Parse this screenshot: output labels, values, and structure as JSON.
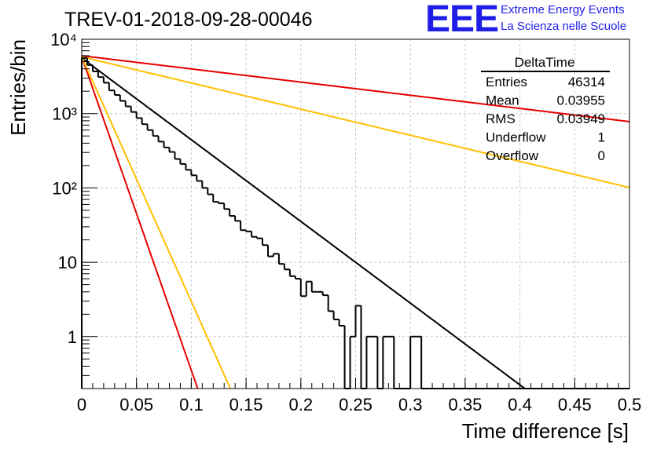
{
  "title": "TREV-01-2018-09-28-00046",
  "brand": {
    "logo": "EEE",
    "line1": "Extreme Energy Events",
    "line2": "La Scienza nelle Scuole"
  },
  "stats": {
    "name": "DeltaTime",
    "rows": [
      {
        "label": "Entries",
        "value": "46314"
      },
      {
        "label": "Mean",
        "value": "0.03955"
      },
      {
        "label": "RMS",
        "value": "0.03949"
      },
      {
        "label": "Underflow",
        "value": "1"
      },
      {
        "label": "Overflow",
        "value": "0"
      }
    ]
  },
  "chart_data": {
    "type": "line",
    "title": "TREV-01-2018-09-28-00046",
    "xlabel": "Time difference [s]",
    "ylabel": "Entries/bin",
    "xlim": [
      0,
      0.5
    ],
    "ylim": [
      0.2,
      10000
    ],
    "yscale": "log",
    "grid": true,
    "x_ticks": [
      "0",
      "0.05",
      "0.1",
      "0.15",
      "0.2",
      "0.25",
      "0.3",
      "0.35",
      "0.4",
      "0.45",
      "0.5"
    ],
    "y_ticks": [
      {
        "value": 1,
        "label": "1"
      },
      {
        "value": 10,
        "label": "10"
      },
      {
        "value": 100,
        "label": "10²"
      },
      {
        "value": 1000,
        "label": "10³"
      },
      {
        "value": 10000,
        "label": "10⁴"
      }
    ],
    "histogram": {
      "bin_width": 0.005,
      "color": "#000000",
      "counts": [
        5600,
        4500,
        3700,
        3100,
        2600,
        2050,
        1780,
        1480,
        1250,
        1050,
        870,
        720,
        600,
        500,
        420,
        350,
        305,
        245,
        210,
        175,
        148,
        124,
        100,
        82,
        65,
        62,
        52,
        42,
        36,
        27,
        26,
        22,
        21,
        17,
        12,
        13,
        9.5,
        8,
        6.5,
        6,
        3.5,
        5.5,
        4,
        4,
        3.6,
        2.2,
        1.7,
        1.4,
        0.2,
        1,
        2.6,
        0.2,
        1,
        1,
        0.2,
        1,
        1,
        0.2,
        0.2,
        0.2,
        1,
        1,
        0,
        0,
        0,
        0,
        0,
        0,
        0,
        0,
        0,
        0,
        0,
        0,
        0,
        0,
        0,
        0,
        0,
        0,
        0,
        0,
        0,
        0,
        0,
        0,
        0,
        0,
        0,
        0,
        0,
        0,
        0,
        0,
        0,
        0,
        0,
        0,
        0,
        0
      ]
    },
    "curves": [
      {
        "color": "#000000",
        "amplitude": 5600,
        "tau": 0.0395
      },
      {
        "color": "#e60000",
        "amplitude": 6000,
        "tau": 0.245
      },
      {
        "color": "#ffbf00",
        "amplitude": 5800,
        "tau": 0.1235
      },
      {
        "color": "#e60000",
        "amplitude": 5800,
        "tau": 0.0103
      },
      {
        "color": "#ffbf00",
        "amplitude": 5800,
        "tau": 0.0132
      }
    ]
  }
}
